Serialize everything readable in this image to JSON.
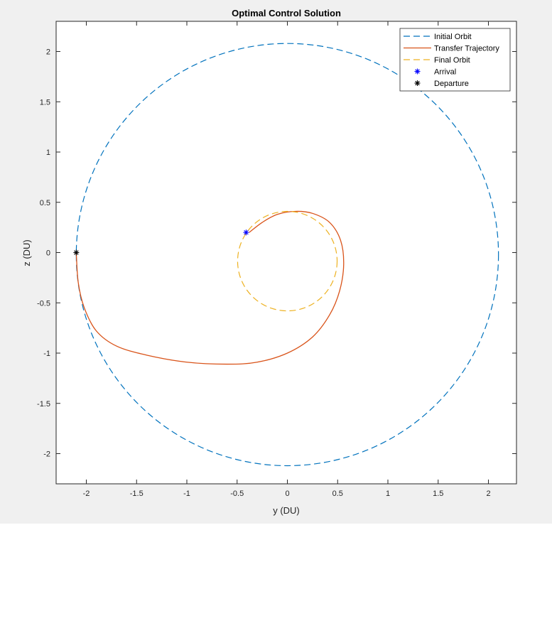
{
  "chart_data": {
    "type": "line",
    "title": "Optimal Control Solution",
    "xlabel": "y (DU)",
    "ylabel": "z (DU)",
    "xlim": [
      -2.3,
      2.3
    ],
    "ylim": [
      -2.3,
      2.3
    ],
    "xticks": [
      -2,
      -1.5,
      -1,
      -0.5,
      0,
      0.5,
      1,
      1.5,
      2
    ],
    "xtick_labels": [
      "-2",
      "-1.5",
      "-1",
      "-0.5",
      "0",
      "0.5",
      "1",
      "1.5",
      "2"
    ],
    "yticks": [
      -2,
      -1.5,
      -1,
      -0.5,
      0,
      0.5,
      1,
      1.5,
      2
    ],
    "ytick_labels": [
      "-2",
      "-1.5",
      "-1",
      "-0.5",
      "0",
      "0.5",
      "1",
      "1.5",
      "2"
    ],
    "grid": false,
    "legend_position": "top-right",
    "series": [
      {
        "name": "Initial Orbit",
        "style": "dashed",
        "color": "#0072bd",
        "center": [
          0,
          -0.02
        ],
        "radius_y": 2.1,
        "radius_z": 2.1
      },
      {
        "name": "Transfer Trajectory",
        "style": "solid",
        "color": "#d95319",
        "y": [
          -2.1,
          -2.08,
          -2.02,
          -1.9,
          -1.7,
          -1.4,
          -1.0,
          -0.6,
          -0.3,
          0.0,
          0.25,
          0.42,
          0.52,
          0.56,
          0.53,
          0.42,
          0.25,
          0.08,
          -0.1,
          -0.25,
          -0.38
        ],
        "z": [
          0.0,
          -0.3,
          -0.55,
          -0.78,
          -0.93,
          -1.02,
          -1.09,
          -1.11,
          -1.09,
          -1.0,
          -0.84,
          -0.62,
          -0.38,
          -0.12,
          0.12,
          0.3,
          0.39,
          0.41,
          0.38,
          0.3,
          0.2
        ]
      },
      {
        "name": "Final Orbit",
        "style": "dashed",
        "color": "#edb120",
        "center": [
          0,
          -0.085
        ],
        "radius_y": 0.495,
        "radius_z": 0.495
      },
      {
        "name": "Arrival",
        "style": "marker",
        "marker": "*",
        "color": "#0000ff",
        "y": [
          -0.41
        ],
        "z": [
          0.2
        ]
      },
      {
        "name": "Departure",
        "style": "marker",
        "marker": "*",
        "color": "#000000",
        "y": [
          -2.1
        ],
        "z": [
          0.0
        ]
      }
    ]
  }
}
